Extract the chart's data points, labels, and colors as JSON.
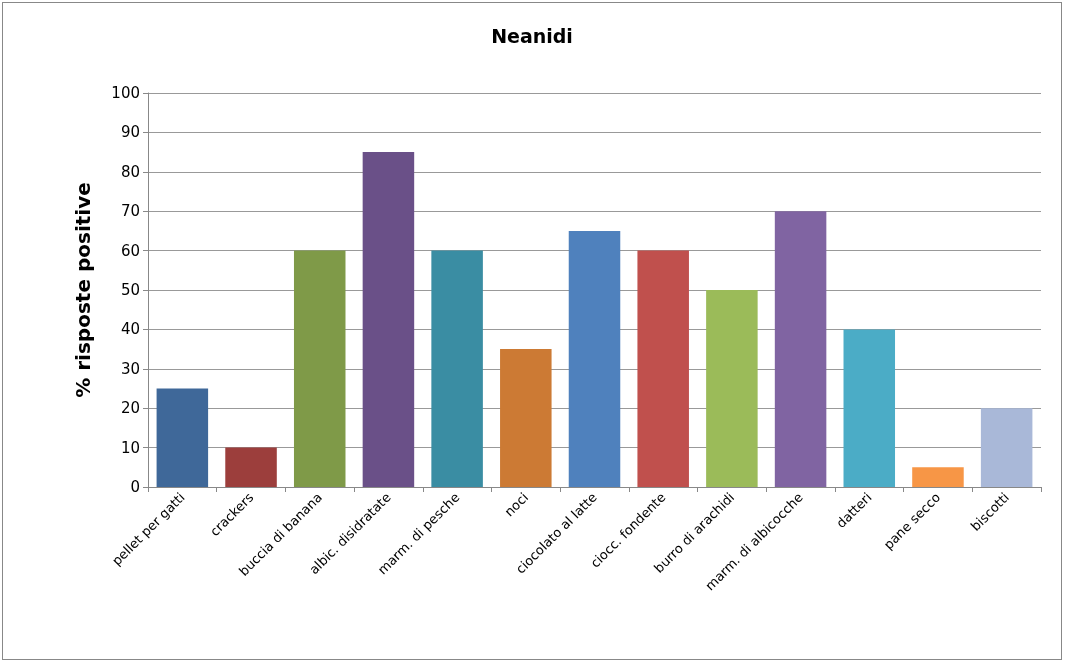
{
  "chart_data": {
    "type": "bar",
    "title": "Neanidi",
    "ylabel": "% risposte positive",
    "categories": [
      "pellet per gatti",
      "crackers",
      "buccia di banana",
      "albic. disidratate",
      "marm. di pesche",
      "noci",
      "ciocolato al latte",
      "ciocc. fondente",
      "burro di arachidi",
      "marm. di albicocche",
      "datteri",
      "pane secco",
      "biscotti"
    ],
    "values": [
      25,
      10,
      60,
      85,
      60,
      35,
      65,
      60,
      50,
      70,
      40,
      5,
      20
    ],
    "colors": [
      "#3f6899",
      "#9c3e3c",
      "#7f9a48",
      "#6a5088",
      "#3a8da3",
      "#cc7a34",
      "#4f81bd",
      "#c0504d",
      "#9bbb59",
      "#8064a2",
      "#4bacc6",
      "#f79646",
      "#a9b8d8"
    ],
    "ylim": [
      0,
      100
    ],
    "yticks": [
      0,
      10,
      20,
      30,
      40,
      50,
      60,
      70,
      80,
      90,
      100
    ],
    "grid": "y"
  }
}
